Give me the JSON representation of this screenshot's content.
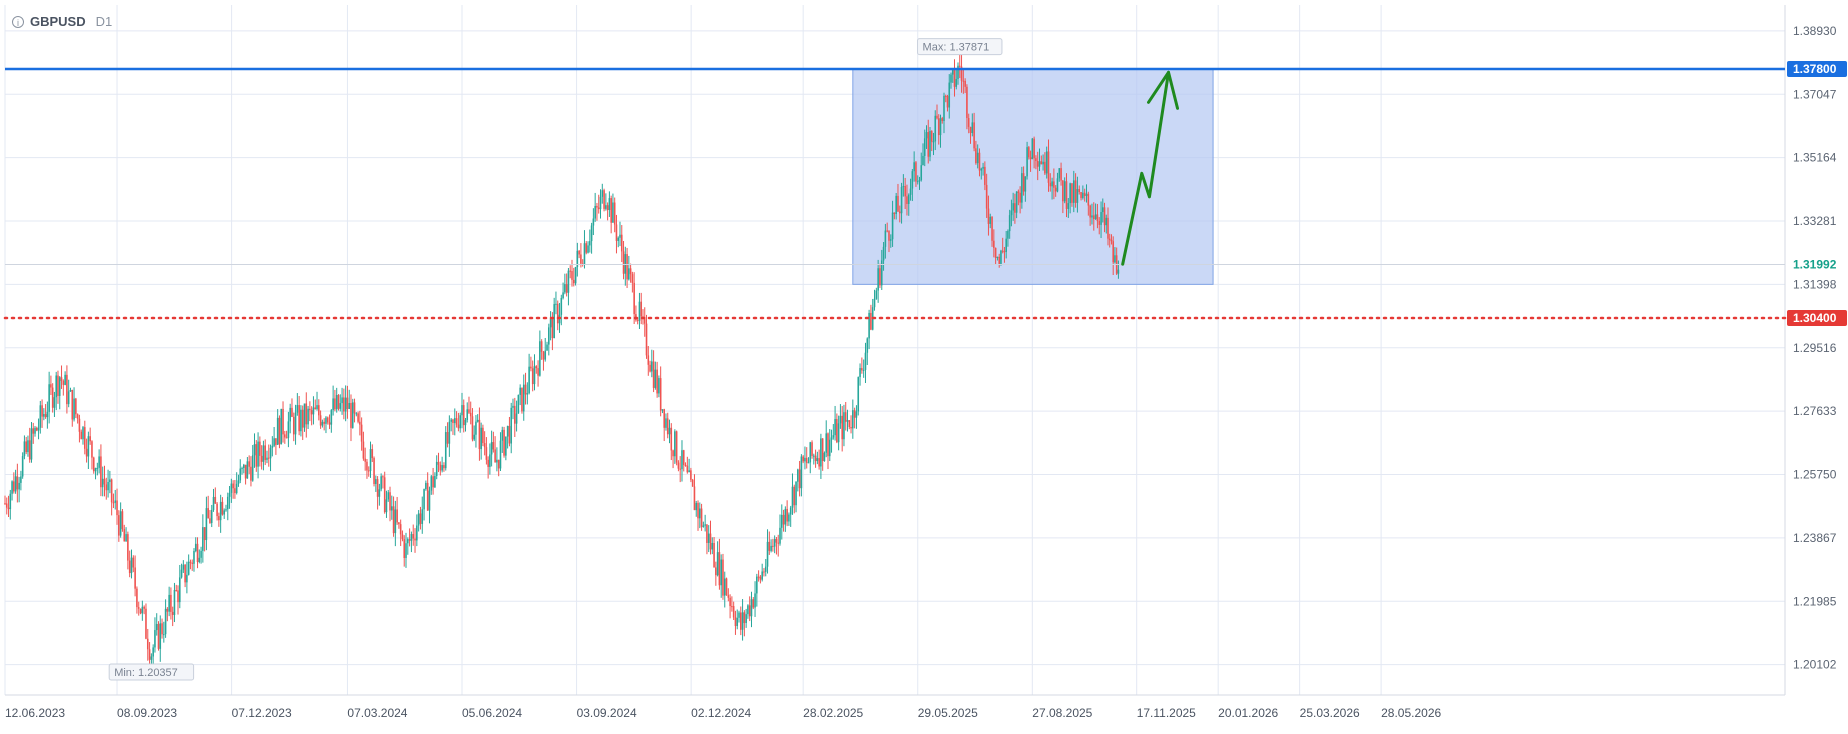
{
  "header": {
    "symbol": "GBPUSD",
    "timeframe": "D1",
    "icon": "info-icon"
  },
  "chart_data": {
    "type": "candlestick",
    "title": "GBPUSD D1",
    "ylim": [
      1.192,
      1.397
    ],
    "y_ticks": [
      "1.38930",
      "1.37047",
      "1.35164",
      "1.33281",
      "1.31398",
      "1.29516",
      "1.27633",
      "1.25750",
      "1.23867",
      "1.21985",
      "1.20102"
    ],
    "x_ticks": [
      "12.06.2023",
      "08.09.2023",
      "07.12.2023",
      "07.03.2024",
      "05.06.2024",
      "03.09.2024",
      "02.12.2024",
      "28.02.2025",
      "29.05.2025",
      "27.08.2025",
      "17.11.2025",
      "20.01.2026",
      "25.03.2026",
      "28.05.2026"
    ],
    "grid": true,
    "max_label": "Max: 1.37871",
    "min_label": "Min: 1.20357",
    "price_path": [
      {
        "date": "12.06.2023",
        "close": 1.249
      },
      {
        "date": "25.07.2023",
        "close": 1.287
      },
      {
        "date": "08.09.2023",
        "close": 1.246
      },
      {
        "date": "05.10.2023",
        "close": 1.205
      },
      {
        "date": "20.11.2023",
        "close": 1.245
      },
      {
        "date": "15.01.2024",
        "close": 1.272
      },
      {
        "date": "07.03.2024",
        "close": 1.278
      },
      {
        "date": "22.04.2024",
        "close": 1.235
      },
      {
        "date": "05.06.2024",
        "close": 1.278
      },
      {
        "date": "01.07.2024",
        "close": 1.261
      },
      {
        "date": "15.08.2024",
        "close": 1.302
      },
      {
        "date": "26.09.2024",
        "close": 1.342
      },
      {
        "date": "15.11.2024",
        "close": 1.27
      },
      {
        "date": "10.01.2025",
        "close": 1.212
      },
      {
        "date": "28.02.2025",
        "close": 1.26
      },
      {
        "date": "08.04.2025",
        "close": 1.275
      },
      {
        "date": "05.05.2025",
        "close": 1.33
      },
      {
        "date": "29.05.2025",
        "close": 1.348
      },
      {
        "date": "01.07.2025",
        "close": 1.3787
      },
      {
        "date": "01.08.2025",
        "close": 1.32
      },
      {
        "date": "27.08.2025",
        "close": 1.356
      },
      {
        "date": "20.09.2025",
        "close": 1.342
      },
      {
        "date": "20.10.2025",
        "close": 1.335
      },
      {
        "date": "04.11.2025",
        "close": 1.314
      }
    ],
    "last_price": "1.31992",
    "resistance": {
      "label": "1.37800",
      "value": 1.378,
      "color": "#1a6fe0"
    },
    "support": {
      "label": "1.30400",
      "value": 1.304,
      "color": "#e53935"
    },
    "range_box": {
      "from": "08.04.2025",
      "to": "16.01.2026",
      "low": 1.314,
      "high": 1.378,
      "color": "#b3c8f2"
    },
    "forecast_arrow": {
      "color": "#1f8a1f",
      "points": [
        {
          "date": "06.11.2025",
          "price": 1.32
        },
        {
          "date": "21.11.2025",
          "price": 1.347
        },
        {
          "date": "27.11.2025",
          "price": 1.34
        },
        {
          "date": "12.12.2025",
          "price": 1.377
        }
      ]
    },
    "colors": {
      "up": "#26a69a",
      "down": "#ef5350",
      "grid": "#e3e8f3"
    }
  }
}
